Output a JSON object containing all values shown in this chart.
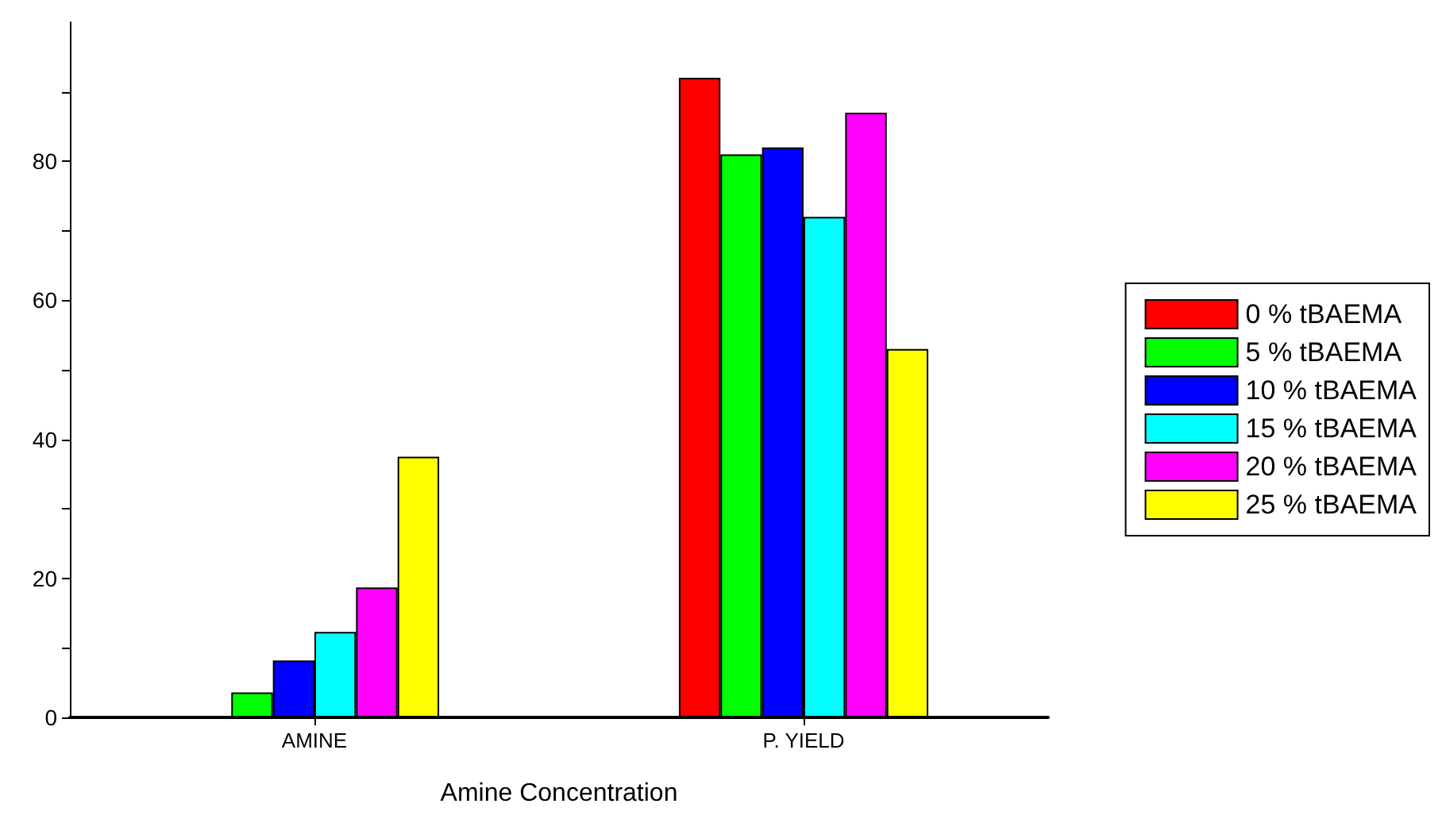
{
  "chart_data": {
    "type": "bar",
    "xlabel": "Amine Concentration",
    "categories": [
      "AMINE",
      "P. YIELD"
    ],
    "series": [
      {
        "name": "0 % tBAEMA",
        "color": "#ff0000",
        "values": [
          null,
          92
        ]
      },
      {
        "name": "5 % tBAEMA",
        "color": "#00ff00",
        "values": [
          3.6,
          81
        ]
      },
      {
        "name": "10 % tBAEMA",
        "color": "#0000ff",
        "values": [
          8.2,
          82
        ]
      },
      {
        "name": "15 % tBAEMA",
        "color": "#00ffff",
        "values": [
          12.3,
          72
        ]
      },
      {
        "name": "20 % tBAEMA",
        "color": "#ff00ff",
        "values": [
          18.7,
          87
        ]
      },
      {
        "name": "25 % tBAEMA",
        "color": "#ffff00",
        "values": [
          37.5,
          53
        ]
      }
    ],
    "ylim": [
      0,
      100
    ],
    "yticks": [
      0,
      {
        "value": 10,
        "label": null
      },
      20,
      {
        "value": 30,
        "label": null
      },
      40,
      {
        "value": 50,
        "label": null
      },
      60,
      {
        "value": 70,
        "label": null
      },
      80,
      {
        "value": 90,
        "label": null
      }
    ],
    "grid": false,
    "legend": "right"
  }
}
